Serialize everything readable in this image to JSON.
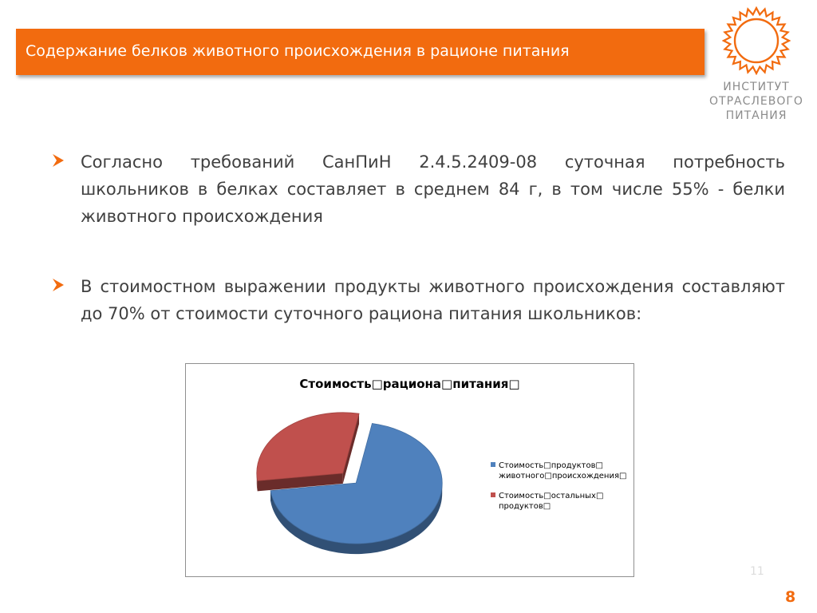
{
  "slide": {
    "title": "Содержание белков животного происхождения в рационе питания",
    "page_number": "11",
    "slide_number": "8"
  },
  "logo": {
    "lines": [
      "ИНСТИТУТ",
      "ОТРАСЛЕВОГО",
      "ПИТАНИЯ"
    ]
  },
  "bullets": [
    {
      "text": "Согласно требований СанПиН 2.4.5.2409-08 суточная потребность школьников в белках составляет в среднем 84 г, в том числе 55% - белки животного происхождения"
    },
    {
      "text": "В стоимостном выражении продукты животного происхождения составляют до 70% от стоимости суточного рациона питания школьников:"
    }
  ],
  "colors": {
    "accent": "#f26b0f",
    "series_animal": "#4f81bd",
    "series_other": "#c0504d"
  },
  "chart_data": {
    "type": "pie",
    "title": "Стоимость□рациона□питания□",
    "legend_position": "right",
    "slices": [
      {
        "label": "Стоимость□продуктов□ животного□происхождения□",
        "value": 70,
        "color": "#4f81bd"
      },
      {
        "label": "Стоимость□остальных□ продуктов□",
        "value": 30,
        "color": "#c0504d"
      }
    ]
  }
}
